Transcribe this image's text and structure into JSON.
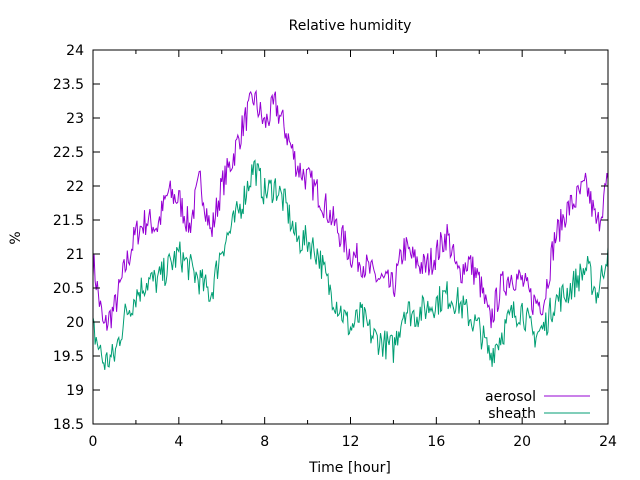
{
  "chart_data": {
    "type": "line",
    "title": "Relative humidity",
    "xlabel": "Time [hour]",
    "ylabel": "%",
    "xlim": [
      0,
      24
    ],
    "ylim": [
      18.5,
      24
    ],
    "xticks": [
      "0",
      "4",
      "8",
      "12",
      "16",
      "20",
      "24"
    ],
    "yticks": [
      "18.5",
      "19",
      "19.5",
      "20",
      "20.5",
      "21",
      "21.5",
      "22",
      "22.5",
      "23",
      "23.5",
      "24"
    ],
    "legend_position": "bottom-right",
    "x": [
      0,
      0.5,
      1,
      1.5,
      2,
      2.5,
      3,
      3.5,
      4,
      4.5,
      5,
      5.5,
      6,
      6.5,
      7,
      7.5,
      8,
      8.5,
      9,
      9.5,
      10,
      10.5,
      11,
      11.5,
      12,
      12.5,
      13,
      13.5,
      14,
      14.5,
      15,
      15.5,
      16,
      16.5,
      17,
      17.5,
      18,
      18.5,
      19,
      19.5,
      20,
      20.5,
      21,
      21.5,
      22,
      22.5,
      23,
      23.5,
      24
    ],
    "series": [
      {
        "name": "aerosol",
        "color": "#9400d3",
        "values": [
          20.9,
          19.9,
          20.2,
          20.8,
          21.3,
          21.5,
          21.4,
          21.9,
          21.8,
          21.4,
          22.1,
          21.3,
          22.0,
          22.4,
          22.9,
          23.3,
          22.9,
          23.2,
          22.8,
          22.3,
          22.1,
          21.9,
          21.6,
          21.3,
          21.0,
          20.9,
          20.7,
          20.6,
          20.5,
          21.1,
          20.9,
          20.8,
          21.0,
          21.3,
          20.7,
          20.9,
          20.6,
          20.0,
          20.5,
          20.7,
          20.6,
          20.3,
          20.3,
          21.2,
          21.6,
          21.8,
          22.0,
          21.4,
          22.1
        ]
      },
      {
        "name": "sheath",
        "color": "#009e73",
        "values": [
          19.9,
          19.4,
          19.5,
          20.1,
          20.4,
          20.6,
          20.6,
          20.8,
          21.0,
          20.8,
          20.6,
          20.4,
          21.1,
          21.4,
          21.8,
          22.3,
          21.9,
          22.0,
          21.7,
          21.2,
          21.2,
          21.0,
          20.5,
          20.2,
          19.9,
          20.1,
          19.8,
          19.7,
          19.6,
          20.2,
          20.1,
          20.2,
          20.3,
          20.4,
          20.3,
          20.1,
          19.9,
          19.5,
          19.8,
          20.1,
          20.2,
          19.8,
          19.9,
          20.3,
          20.4,
          20.6,
          20.8,
          20.4,
          21.1
        ]
      }
    ]
  }
}
